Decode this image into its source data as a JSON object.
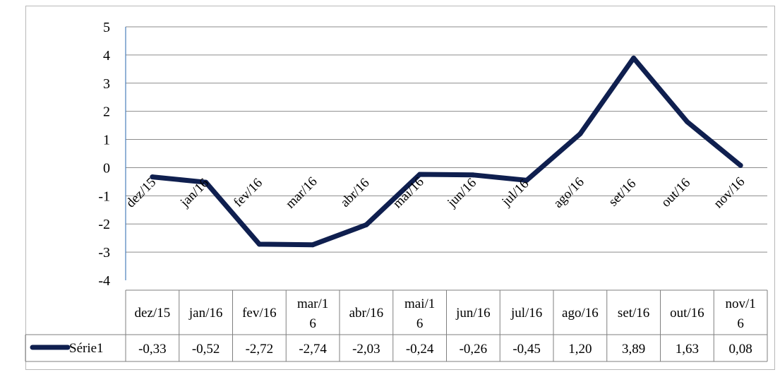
{
  "chart_data": {
    "type": "line",
    "categories": [
      "dez/15",
      "jan/16",
      "fev/16",
      "mar/16",
      "abr/16",
      "mai/16",
      "jun/16",
      "jul/16",
      "ago/16",
      "set/16",
      "out/16",
      "nov/16"
    ],
    "table_headers": [
      [
        "dez/15"
      ],
      [
        "jan/16"
      ],
      [
        "fev/16"
      ],
      [
        "mar/1",
        "6"
      ],
      [
        "abr/16"
      ],
      [
        "mai/1",
        "6"
      ],
      [
        "jun/16"
      ],
      [
        "jul/16"
      ],
      [
        "ago/16"
      ],
      [
        "set/16"
      ],
      [
        "out/16"
      ],
      [
        "nov/1",
        "6"
      ]
    ],
    "series": [
      {
        "name": "Série1",
        "values": [
          -0.33,
          -0.52,
          -2.72,
          -2.74,
          -2.03,
          -0.24,
          -0.26,
          -0.45,
          1.2,
          3.89,
          1.63,
          0.08
        ],
        "labels": [
          "-0,33",
          "-0,52",
          "-2,72",
          "-2,74",
          "-2,03",
          "-0,24",
          "-0,26",
          "-0,45",
          "1,20",
          "3,89",
          "1,63",
          "0,08"
        ],
        "color": "#0f1f4f"
      }
    ],
    "ylim": [
      -4,
      5
    ],
    "yticks": [
      "5",
      "4",
      "3",
      "2",
      "1",
      "0",
      "-1",
      "-2",
      "-3",
      "-4"
    ],
    "grid": true,
    "legend": "data-table"
  }
}
